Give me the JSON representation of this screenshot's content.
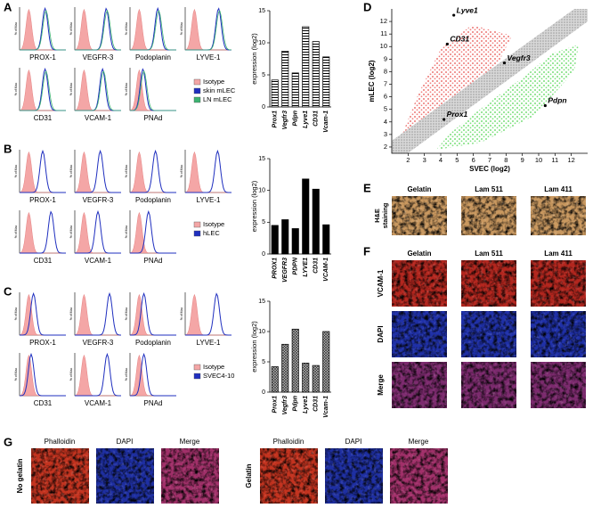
{
  "figure": {
    "flow": [
      {
        "letter": "A",
        "y_label": "% of Max",
        "markers": [
          "PROX-1",
          "VEGFR-3",
          "Podoplanin",
          "LYVE-1",
          "CD31",
          "VCAM-1",
          "PNAd"
        ],
        "legend": [
          "Isotype",
          "skin mLEC",
          "LN mLEC"
        ],
        "legend_colors": [
          "#f4a6a6",
          "#1f2fbf",
          "#3cb371"
        ]
      },
      {
        "letter": "B",
        "y_label": "% of Max",
        "markers": [
          "PROX-1",
          "VEGFR-3",
          "Podoplanin",
          "LYVE-1",
          "CD31",
          "VCAM-1",
          "PNAd"
        ],
        "legend": [
          "Isotype",
          "hLEC"
        ],
        "legend_colors": [
          "#f4a6a6",
          "#1f2fbf"
        ]
      },
      {
        "letter": "C",
        "y_label": "% of Max",
        "markers": [
          "PROX-1",
          "VEGFR-3",
          "Podoplanin",
          "LYVE-1",
          "CD31",
          "VCAM-1",
          "PNAd"
        ],
        "legend": [
          "Isotype",
          "SVEC4-10"
        ],
        "legend_colors": [
          "#f4a6a6",
          "#1f2fbf"
        ]
      }
    ],
    "scatter_letter": "D",
    "he": {
      "letter": "E",
      "columns": [
        "Gelatin",
        "Lam 511",
        "Lam 411"
      ],
      "row_label": [
        "H&E",
        "staining"
      ]
    },
    "if": {
      "letter": "F",
      "columns": [
        "Gelatin",
        "Lam 511",
        "Lam 411"
      ],
      "rows": [
        "VCAM-1",
        "DAPI",
        "Merge"
      ]
    },
    "g": {
      "letter": "G",
      "groups": [
        {
          "row": "No gelatin",
          "columns": [
            "Phalloidin",
            "DAPI",
            "Merge"
          ]
        },
        {
          "row": "Gelatin",
          "columns": [
            "Phalloidin",
            "DAPI",
            "Merge"
          ]
        }
      ]
    }
  },
  "chart_data": [
    {
      "type": "bar",
      "y_label": "expression (log2)",
      "categories": [
        "Prox1",
        "Vegfr3",
        "Pdpn",
        "Lyve1",
        "CD31",
        "Vcam-1"
      ],
      "values": [
        4.2,
        8.7,
        5.3,
        12.5,
        10.2,
        7.8
      ],
      "color": "#000000",
      "fill": "horizontal-stripes",
      "ylim": [
        0,
        15
      ],
      "yticks": [
        0,
        5,
        10,
        15
      ]
    },
    {
      "type": "bar",
      "y_label": "expression (log2)",
      "categories": [
        "PROX1",
        "VEGFR3",
        "PDPN",
        "LYVE1",
        "CD31",
        "VCAM-1"
      ],
      "values": [
        4.5,
        5.4,
        4.0,
        11.8,
        10.2,
        4.6
      ],
      "color": "#000000",
      "fill": "solid",
      "ylim": [
        0,
        15
      ],
      "yticks": [
        0,
        5,
        10,
        15
      ]
    },
    {
      "type": "bar",
      "y_label": "expression (log2)",
      "categories": [
        "Prox1",
        "Vegfr3",
        "Pdpn",
        "Lyve1",
        "CD31",
        "Vcam-1"
      ],
      "values": [
        4.2,
        7.9,
        10.4,
        4.8,
        4.4,
        10.0
      ],
      "color": "#000000",
      "fill": "cross-hatch",
      "ylim": [
        0,
        15
      ],
      "yticks": [
        0,
        5,
        10,
        15
      ]
    },
    {
      "type": "scatter",
      "x_label": "SVEC (log2)",
      "y_label": "mLEC (log2)",
      "xlim": [
        1,
        13
      ],
      "ylim": [
        1.5,
        13
      ],
      "xticks": [
        2,
        3,
        4,
        5,
        6,
        7,
        8,
        9,
        10,
        11,
        12
      ],
      "yticks": [
        2,
        3,
        4,
        5,
        6,
        7,
        8,
        9,
        10,
        11,
        12
      ],
      "point_labels": [
        "Lyve1",
        "CD31",
        "Vegfr3",
        "Prox1",
        "Pdpn"
      ],
      "x": [
        4.8,
        4.4,
        7.9,
        4.2,
        10.4
      ],
      "values": [
        12.5,
        10.2,
        8.7,
        4.2,
        5.3
      ],
      "color": "#000000"
    }
  ]
}
